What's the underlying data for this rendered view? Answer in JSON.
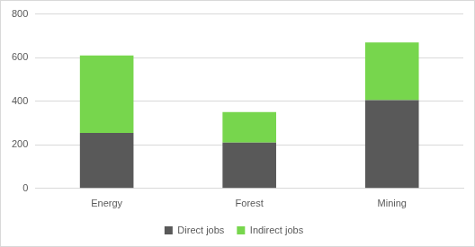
{
  "chart_data": {
    "type": "bar",
    "stacked": true,
    "categories": [
      "Energy",
      "Forest",
      "Mining"
    ],
    "series": [
      {
        "name": "Direct jobs",
        "color": "#595959",
        "values": [
          255,
          210,
          405
        ]
      },
      {
        "name": "Indirect jobs",
        "color": "#77d64d",
        "values": [
          355,
          140,
          265
        ]
      }
    ],
    "ylim": [
      0,
      800
    ],
    "yticks": [
      0,
      200,
      400,
      600,
      800
    ],
    "grid": true,
    "legend": "bottom"
  }
}
